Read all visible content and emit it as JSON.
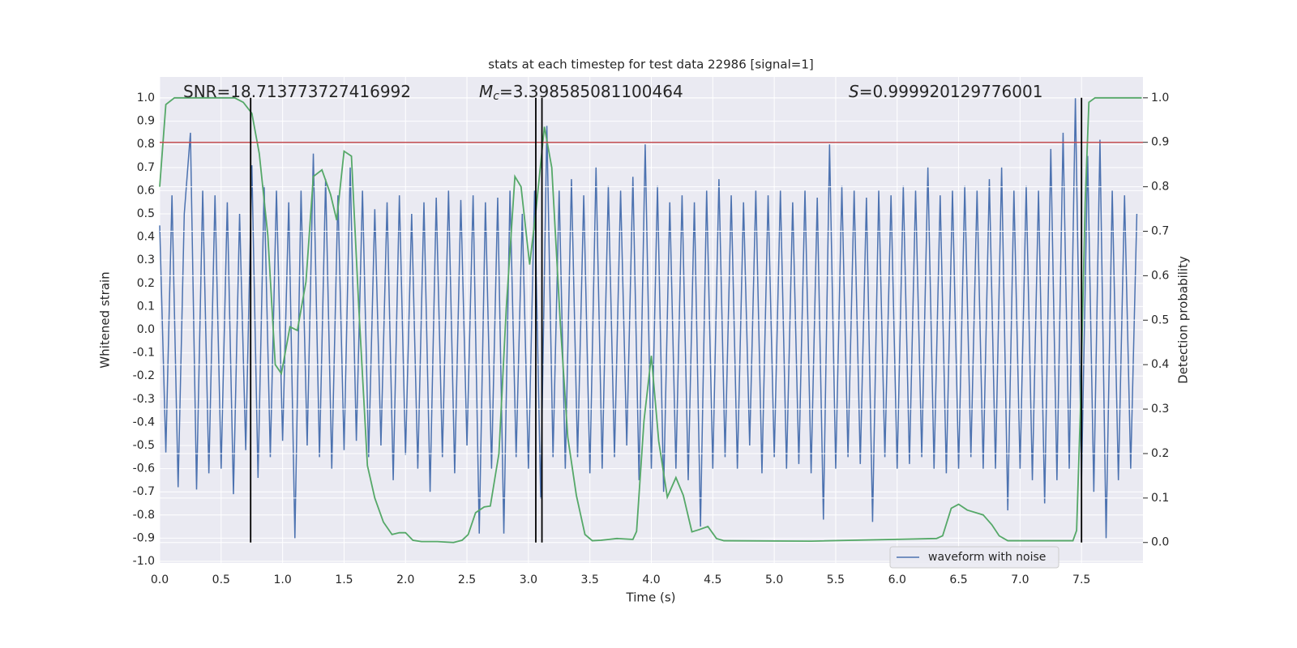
{
  "chart_data": {
    "type": "line",
    "title": "stats at each timestep for test data 22986 [signal=1]",
    "xlabel": "Time (s)",
    "ylabel": "Whitened strain",
    "y2label": "Detection probability",
    "xlim": [
      0,
      8.0
    ],
    "ylim": [
      -1.007,
      1.091
    ],
    "y2lim": [
      -0.046,
      1.047
    ],
    "xticks": [
      {
        "value": 0,
        "label": "0.0"
      },
      0.5,
      {
        "value": 1,
        "label": "1.0"
      },
      1.5,
      {
        "value": 2,
        "label": "2.0"
      },
      2.5,
      {
        "value": 3,
        "label": "3.0"
      },
      3.5,
      {
        "value": 4,
        "label": "4.0"
      },
      4.5,
      {
        "value": 5,
        "label": "5.0"
      },
      5.5,
      {
        "value": 6,
        "label": "6.0"
      },
      6.5,
      {
        "value": 7,
        "label": "7.0"
      },
      7.5
    ],
    "yticks": [
      {
        "value": -1,
        "label": "-1.0"
      },
      -0.9,
      -0.8,
      -0.7,
      -0.6,
      -0.5,
      -0.4,
      -0.3,
      -0.2,
      -0.1,
      {
        "value": 0,
        "label": "0.0"
      },
      0.1,
      0.2,
      0.3,
      0.4,
      0.5,
      0.6,
      0.7,
      0.8,
      0.9,
      {
        "value": 1,
        "label": "1.0"
      }
    ],
    "y2ticks": [
      {
        "value": 0,
        "label": "0.0"
      },
      0.1,
      0.2,
      0.3,
      0.4,
      0.5,
      0.6,
      0.7,
      0.8,
      0.9,
      {
        "value": 1,
        "label": "1.0"
      }
    ],
    "grid": true,
    "legend": "lower right",
    "series": [
      {
        "name": "waveform with noise",
        "color": "#4c72b0",
        "x": [
          0,
          0.05,
          0.1,
          0.15,
          0.2,
          0.25,
          0.3,
          0.35,
          0.4,
          0.45,
          0.5,
          0.55,
          0.6,
          0.65,
          0.7,
          0.75,
          0.8,
          0.85,
          0.9,
          0.95,
          1,
          1.05,
          1.1,
          1.15,
          1.2,
          1.25,
          1.3,
          1.35,
          1.4,
          1.45,
          1.5,
          1.55,
          1.6,
          1.65,
          1.7,
          1.75,
          1.8,
          1.85,
          1.9,
          1.95,
          2,
          2.05,
          2.1,
          2.15,
          2.2,
          2.25,
          2.3,
          2.35,
          2.4,
          2.45,
          2.5,
          2.55,
          2.6,
          2.65,
          2.7,
          2.75,
          2.8,
          2.85,
          2.9,
          2.95,
          3,
          3.05,
          3.1,
          3.15,
          3.2,
          3.25,
          3.3,
          3.35,
          3.4,
          3.45,
          3.5,
          3.55,
          3.6,
          3.65,
          3.7,
          3.75,
          3.8,
          3.85,
          3.9,
          3.95,
          4,
          4.05,
          4.1,
          4.15,
          4.2,
          4.25,
          4.3,
          4.35,
          4.4,
          4.45,
          4.5,
          4.55,
          4.6,
          4.65,
          4.7,
          4.75,
          4.8,
          4.85,
          4.9,
          4.95,
          5,
          5.05,
          5.1,
          5.15,
          5.2,
          5.25,
          5.3,
          5.35,
          5.4,
          5.45,
          5.5,
          5.55,
          5.6,
          5.65,
          5.7,
          5.75,
          5.8,
          5.85,
          5.9,
          5.95,
          6,
          6.05,
          6.1,
          6.15,
          6.2,
          6.25,
          6.3,
          6.35,
          6.4,
          6.45,
          6.5,
          6.55,
          6.6,
          6.65,
          6.7,
          6.75,
          6.8,
          6.85,
          6.9,
          6.95,
          7,
          7.05,
          7.1,
          7.15,
          7.2,
          7.25,
          7.3,
          7.35,
          7.4,
          7.45,
          7.5,
          7.55,
          7.6,
          7.65,
          7.7,
          7.75,
          7.8,
          7.85,
          7.9,
          7.95
        ],
        "values": [
          0.45,
          -0.53,
          0.58,
          -0.68,
          0.5,
          0.85,
          -0.69,
          0.6,
          -0.62,
          0.58,
          -0.6,
          0.55,
          -0.71,
          0.5,
          -0.52,
          0.71,
          -0.64,
          0.62,
          -0.55,
          0.6,
          -0.48,
          0.55,
          -0.9,
          0.6,
          -0.5,
          0.76,
          -0.55,
          0.65,
          -0.6,
          0.58,
          -0.52,
          0.7,
          -0.48,
          0.6,
          -0.55,
          0.52,
          -0.5,
          0.55,
          -0.65,
          0.58,
          -0.54,
          0.5,
          -0.6,
          0.55,
          -0.7,
          0.57,
          -0.55,
          0.6,
          -0.62,
          0.56,
          -0.5,
          0.58,
          -0.88,
          0.55,
          -0.6,
          0.57,
          -0.88,
          0.6,
          -0.55,
          0.5,
          -0.6,
          0.6,
          -0.73,
          0.88,
          -0.55,
          0.6,
          -0.6,
          0.65,
          -0.55,
          0.58,
          -0.62,
          0.7,
          -0.6,
          0.62,
          -0.55,
          0.6,
          -0.5,
          0.66,
          -0.65,
          0.8,
          -0.6,
          0.62,
          -0.7,
          0.55,
          -0.6,
          0.58,
          -0.65,
          0.55,
          -0.85,
          0.6,
          -0.6,
          0.65,
          -0.55,
          0.58,
          -0.6,
          0.55,
          -0.5,
          0.6,
          -0.62,
          0.58,
          -0.55,
          0.6,
          -0.6,
          0.55,
          -0.58,
          0.6,
          -0.62,
          0.57,
          -0.82,
          0.8,
          -0.6,
          0.62,
          -0.55,
          0.6,
          -0.58,
          0.57,
          -0.83,
          0.6,
          -0.55,
          0.58,
          -0.6,
          0.62,
          -0.58,
          0.6,
          -0.55,
          0.7,
          -0.6,
          0.58,
          -0.62,
          0.6,
          -0.6,
          0.62,
          -0.55,
          0.6,
          -0.6,
          0.65,
          -0.6,
          0.7,
          -0.78,
          0.6,
          -0.6,
          0.62,
          -0.65,
          0.6,
          -0.75,
          0.78,
          -0.65,
          0.85,
          -0.6,
          1.0,
          -0.65,
          0.75,
          -0.7,
          0.82,
          -0.9,
          0.6,
          -0.65,
          0.58,
          -0.6,
          0.5
        ]
      },
      {
        "color": "#55a868",
        "axis": "y2",
        "x": [
          0,
          0.05,
          0.12,
          0.61,
          0.68,
          0.75,
          0.81,
          0.88,
          0.94,
          0.99,
          1.06,
          1.12,
          1.19,
          1.25,
          1.32,
          1.39,
          1.44,
          1.5,
          1.56,
          1.62,
          1.69,
          1.75,
          1.82,
          1.89,
          1.95,
          2,
          2.06,
          2.13,
          2.26,
          2.39,
          2.46,
          2.51,
          2.57,
          2.64,
          2.69,
          2.76,
          2.82,
          2.89,
          2.94,
          3.01,
          3.06,
          3.13,
          3.19,
          3.26,
          3.32,
          3.39,
          3.46,
          3.52,
          3.59,
          3.72,
          3.85,
          3.88,
          3.94,
          4,
          4.06,
          4.13,
          4.2,
          4.26,
          4.33,
          4.39,
          4.46,
          4.53,
          4.59,
          5.3,
          6.32,
          6.37,
          6.44,
          6.5,
          6.57,
          6.7,
          6.77,
          6.83,
          6.9,
          7.1,
          7.43,
          7.46,
          7.49,
          7.53,
          7.56,
          7.61,
          7.99
        ],
        "values": [
          0.8,
          0.985,
          1.0,
          1.0,
          0.99,
          0.965,
          0.875,
          0.69,
          0.4,
          0.38,
          0.485,
          0.477,
          0.586,
          0.823,
          0.838,
          0.783,
          0.725,
          0.88,
          0.869,
          0.528,
          0.173,
          0.1,
          0.046,
          0.018,
          0.022,
          0.022,
          0.005,
          0.002,
          0.002,
          0.0,
          0.005,
          0.018,
          0.067,
          0.08,
          0.082,
          0.2,
          0.528,
          0.823,
          0.8,
          0.625,
          0.743,
          0.935,
          0.843,
          0.49,
          0.237,
          0.106,
          0.018,
          0.004,
          0.005,
          0.009,
          0.007,
          0.025,
          0.273,
          0.42,
          0.228,
          0.102,
          0.146,
          0.106,
          0.024,
          0.029,
          0.036,
          0.009,
          0.004,
          0.003,
          0.009,
          0.015,
          0.077,
          0.086,
          0.073,
          0.062,
          0.04,
          0.015,
          0.004,
          0.004,
          0.004,
          0.027,
          0.29,
          0.765,
          0.99,
          1.0,
          1.0
        ]
      }
    ],
    "hlines": [
      {
        "value": 0.9,
        "axis": "y2",
        "color": "#c44e52"
      }
    ],
    "vlines": {
      "x": [
        0.74,
        3.06,
        3.11,
        7.5
      ],
      "color": "#000000"
    },
    "annotations": [
      {
        "text": "SNR=18.713773727416992"
      },
      {
        "symbol": "M",
        "subscript": "c",
        "text": "=3.398585081100464"
      },
      {
        "symbol": "S",
        "text": "=0.999920129776001"
      }
    ]
  }
}
